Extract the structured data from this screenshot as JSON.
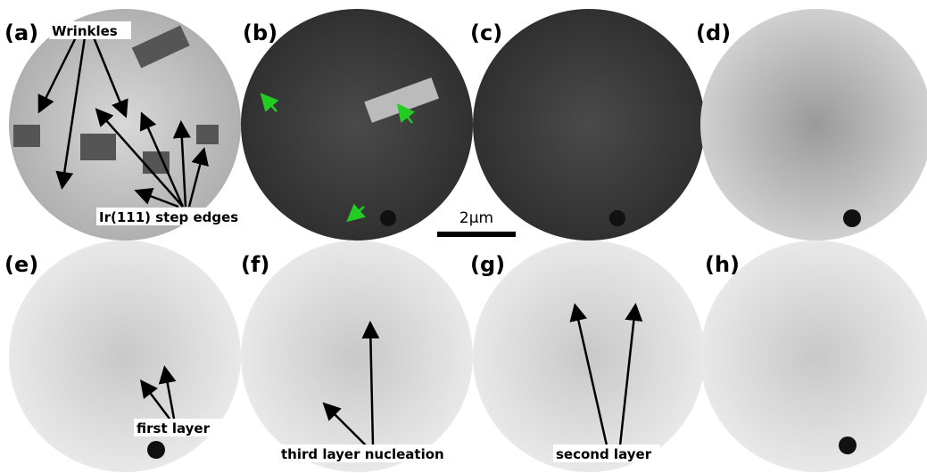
{
  "panels": [
    {
      "label": "(a)"
    },
    {
      "label": "(b)"
    },
    {
      "label": "(c)"
    },
    {
      "label": "(d)"
    },
    {
      "label": "(e)"
    },
    {
      "label": "(f)"
    },
    {
      "label": "(g)"
    },
    {
      "label": "(h)"
    }
  ],
  "annotations": {
    "wrinkles": "Wrinkles",
    "step_edges": "Ir(111) step edges",
    "first_layer": "first layer",
    "third_layer": "third layer nucleation",
    "second_layer": "second layer"
  },
  "scale_bar": "2μm"
}
